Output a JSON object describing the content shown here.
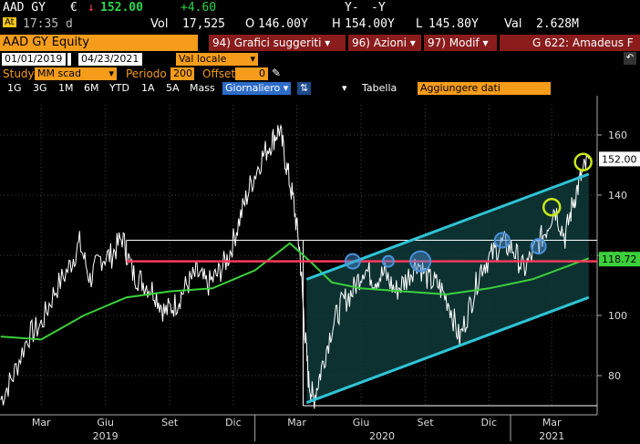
{
  "quote": {
    "ticker": "AAD GY",
    "currency": "€",
    "arrow": "↓",
    "last": "152.00",
    "change": "+4.60",
    "y1": "Y-",
    "y2": "-Y",
    "time_label": "At",
    "time": "17:35 d",
    "vol_label": "Vol",
    "vol": "17,525",
    "open_label": "O",
    "open": "146.00Y",
    "high_label": "H",
    "high": "154.00Y",
    "low_label": "L",
    "low": "145.80Y",
    "val_label": "Val",
    "val": "2.628M"
  },
  "toolbar1": {
    "title": "AAD GY Equity",
    "menu1_num": "94)",
    "menu1": "Grafici suggeriti",
    "menu2_num": "96)",
    "menu2": "Azioni",
    "menu3_num": "97)",
    "menu3": "Modif",
    "news": "G 622: Amadeus F"
  },
  "toolbar2": {
    "date_from": "01/01/2019",
    "date_to": "04/23/2021",
    "currency_mode": "Val locale",
    "study_label": "Study",
    "study_value": "MM scad",
    "period_label": "Periodo",
    "period_value": "200",
    "offset_label": "Offset",
    "offset_value": "0"
  },
  "toolbar3": {
    "ranges": [
      "1G",
      "3G",
      "1M",
      "6M",
      "YTD",
      "1A",
      "5A",
      "Mass"
    ],
    "interval": "Giornaliero",
    "table": "Tabella",
    "add_data": "Aggiungere dati"
  },
  "colors": {
    "price_line": "#ffffff",
    "ma_line": "#3bd13b",
    "channel_line": "#2ec4d6",
    "support_line": "#ff3b5c",
    "circle_blue": "#4a90d9",
    "circle_yellow": "#c8e81a",
    "channel_fill": "#0f3a3a",
    "last_price_box": "#ffffff",
    "ma_box": "#3bd13b"
  },
  "chart_data": {
    "type": "line",
    "x_tick_labels": [
      "Mar",
      "Giu",
      "Set",
      "Dic",
      "Mar",
      "Giu",
      "Set",
      "Dic",
      "Mar"
    ],
    "x_year_labels": [
      "2019",
      "2020",
      "2021"
    ],
    "y_ticks": [
      80,
      100,
      120,
      140,
      160
    ],
    "ylim": [
      70,
      170
    ],
    "last_price_label": "152.00",
    "ma_label": "118.72",
    "series": [
      {
        "kind": "price",
        "points": [
          [
            "2019-01-02",
            72
          ],
          [
            "2019-01-20",
            80
          ],
          [
            "2019-02-10",
            93
          ],
          [
            "2019-03-01",
            97
          ],
          [
            "2019-03-20",
            108
          ],
          [
            "2019-04-10",
            116
          ],
          [
            "2019-04-25",
            124
          ],
          [
            "2019-05-10",
            112
          ],
          [
            "2019-05-25",
            119
          ],
          [
            "2019-06-10",
            120
          ],
          [
            "2019-06-25",
            126
          ],
          [
            "2019-07-10",
            114
          ],
          [
            "2019-07-25",
            111
          ],
          [
            "2019-08-10",
            108
          ],
          [
            "2019-08-25",
            101
          ],
          [
            "2019-09-10",
            104
          ],
          [
            "2019-09-25",
            110
          ],
          [
            "2019-10-10",
            114
          ],
          [
            "2019-10-25",
            110
          ],
          [
            "2019-11-10",
            114
          ],
          [
            "2019-11-25",
            120
          ],
          [
            "2019-12-10",
            132
          ],
          [
            "2019-12-25",
            143
          ],
          [
            "2020-01-10",
            152
          ],
          [
            "2020-01-25",
            158
          ],
          [
            "2020-02-05",
            162
          ],
          [
            "2020-02-15",
            150
          ],
          [
            "2020-02-25",
            138
          ],
          [
            "2020-03-05",
            122
          ],
          [
            "2020-03-12",
            96
          ],
          [
            "2020-03-18",
            78
          ],
          [
            "2020-03-25",
            72
          ],
          [
            "2020-04-05",
            82
          ],
          [
            "2020-04-20",
            96
          ],
          [
            "2020-05-05",
            104
          ],
          [
            "2020-05-20",
            108
          ],
          [
            "2020-06-05",
            116
          ],
          [
            "2020-06-20",
            112
          ],
          [
            "2020-07-05",
            114
          ],
          [
            "2020-07-20",
            108
          ],
          [
            "2020-08-05",
            112
          ],
          [
            "2020-08-20",
            118
          ],
          [
            "2020-09-05",
            112
          ],
          [
            "2020-09-20",
            110
          ],
          [
            "2020-10-05",
            104
          ],
          [
            "2020-10-20",
            92
          ],
          [
            "2020-11-05",
            104
          ],
          [
            "2020-11-20",
            116
          ],
          [
            "2020-12-05",
            120
          ],
          [
            "2020-12-20",
            124
          ],
          [
            "2021-01-05",
            122
          ],
          [
            "2021-01-20",
            115
          ],
          [
            "2021-02-05",
            122
          ],
          [
            "2021-02-20",
            128
          ],
          [
            "2021-03-05",
            136
          ],
          [
            "2021-03-20",
            126
          ],
          [
            "2021-04-01",
            138
          ],
          [
            "2021-04-12",
            146
          ],
          [
            "2021-04-23",
            152
          ]
        ]
      },
      {
        "kind": "moving_average",
        "points": [
          [
            "2019-01-02",
            93
          ],
          [
            "2019-03-01",
            92
          ],
          [
            "2019-05-01",
            100
          ],
          [
            "2019-07-01",
            106
          ],
          [
            "2019-09-01",
            108
          ],
          [
            "2019-11-01",
            109
          ],
          [
            "2020-01-01",
            115
          ],
          [
            "2020-02-20",
            124
          ],
          [
            "2020-03-20",
            118
          ],
          [
            "2020-04-20",
            111
          ],
          [
            "2020-06-01",
            109
          ],
          [
            "2020-08-01",
            108
          ],
          [
            "2020-10-01",
            107
          ],
          [
            "2020-12-01",
            109
          ],
          [
            "2021-02-01",
            112
          ],
          [
            "2021-04-23",
            119
          ]
        ]
      }
    ],
    "annotations": {
      "channel_upper": [
        [
          "2020-03-15",
          112
        ],
        [
          "2021-04-23",
          147
        ]
      ],
      "channel_lower": [
        [
          "2020-03-15",
          71
        ],
        [
          "2021-04-23",
          106
        ]
      ],
      "support_level": 118,
      "resistance_box_top": 125,
      "resistance_box_bottom": 70,
      "circles_blue": [
        [
          "2020-05-20",
          118
        ],
        [
          "2020-07-10",
          118
        ],
        [
          "2020-08-25",
          118
        ],
        [
          "2020-12-20",
          125
        ],
        [
          "2021-02-10",
          123
        ]
      ],
      "circles_yellow": [
        [
          "2021-03-01",
          136
        ],
        [
          "2021-04-15",
          151
        ]
      ]
    }
  }
}
